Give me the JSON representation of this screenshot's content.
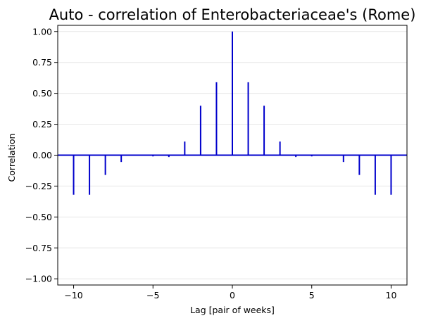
{
  "chart_data": {
    "type": "stem",
    "title": "Auto - correlation of Enterobacteriaceae's (Rome)",
    "xlabel": "Lag [pair of weeks]",
    "ylabel": "Correlation",
    "xlim": [
      -11,
      11
    ],
    "ylim": [
      -1.05,
      1.05
    ],
    "xticks": [
      -10,
      -5,
      0,
      5,
      10
    ],
    "xtick_labels": [
      "−10",
      "−5",
      "0",
      "5",
      "10"
    ],
    "yticks": [
      -1.0,
      -0.75,
      -0.5,
      -0.25,
      0.0,
      0.25,
      0.5,
      0.75,
      1.0
    ],
    "ytick_labels": [
      "−1.00",
      "−0.75",
      "−0.50",
      "−0.25",
      "0.00",
      "0.25",
      "0.50",
      "0.75",
      "1.00"
    ],
    "grid": "horizontal",
    "baseline": 0,
    "color": "#0000cc",
    "x": [
      -10,
      -9,
      -8,
      -7,
      -6,
      -5,
      -4,
      -3,
      -2,
      -1,
      0,
      1,
      2,
      3,
      4,
      5,
      6,
      7,
      8,
      9,
      10
    ],
    "values": [
      -0.32,
      -0.32,
      -0.16,
      -0.055,
      0.0,
      -0.01,
      -0.015,
      0.11,
      0.4,
      0.59,
      1.0,
      0.59,
      0.4,
      0.11,
      -0.015,
      -0.01,
      0.0,
      -0.055,
      -0.16,
      -0.32,
      -0.32
    ]
  }
}
